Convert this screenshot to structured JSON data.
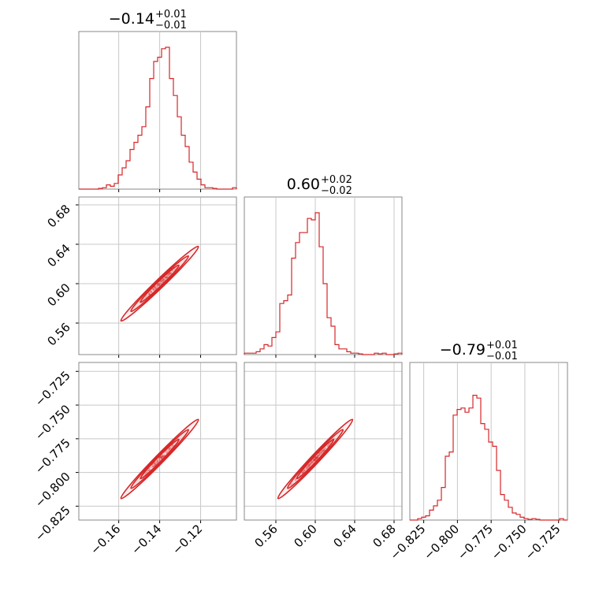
{
  "chart_data": {
    "type": "corner",
    "color": "#d62728",
    "grid": true,
    "parameters": [
      {
        "title": {
          "main": "−0.14",
          "plus": "+0.01",
          "minus": "−0.01"
        },
        "range": [
          -0.1795,
          -0.1025
        ],
        "ticks": [
          {
            "v": -0.16,
            "label": "−0.16"
          },
          {
            "v": -0.14,
            "label": "−0.14"
          },
          {
            "v": -0.12,
            "label": "−0.12"
          }
        ],
        "hist": [
          0,
          0,
          0,
          0,
          0,
          0.005,
          0.01,
          0.03,
          0.02,
          0.04,
          0.1,
          0.15,
          0.2,
          0.28,
          0.33,
          0.38,
          0.44,
          0.58,
          0.78,
          0.9,
          0.93,
          0.99,
          1.0,
          0.78,
          0.66,
          0.51,
          0.38,
          0.3,
          0.19,
          0.12,
          0.07,
          0.03,
          0.01,
          0.01,
          0.005,
          0,
          0,
          0,
          0,
          0.01
        ]
      },
      {
        "title": {
          "main": "0.60",
          "plus": "+0.02",
          "minus": "−0.02"
        },
        "range": [
          0.528,
          0.688
        ],
        "ticks": [
          {
            "v": 0.56,
            "label": "0.56"
          },
          {
            "v": 0.6,
            "label": "0.60"
          },
          {
            "v": 0.64,
            "label": "0.64"
          },
          {
            "v": 0.68,
            "label": "0.68"
          }
        ],
        "hist": [
          0.01,
          0.01,
          0.01,
          0.02,
          0.04,
          0.07,
          0.06,
          0.12,
          0.16,
          0.36,
          0.38,
          0.42,
          0.68,
          0.79,
          0.86,
          0.86,
          0.96,
          0.95,
          1.0,
          0.76,
          0.5,
          0.26,
          0.2,
          0.07,
          0.04,
          0.04,
          0.02,
          0.01,
          0.01,
          0.005,
          0,
          0,
          0,
          0.01,
          0.005,
          0.01,
          0,
          0,
          0.005,
          0.01
        ]
      },
      {
        "title": {
          "main": "−0.79",
          "plus": "+0.01",
          "minus": "−0.01"
        },
        "range": [
          -0.8353,
          -0.7184
        ],
        "ticks": [
          {
            "v": -0.825,
            "label": "−0.825"
          },
          {
            "v": -0.8,
            "label": "−0.800"
          },
          {
            "v": -0.775,
            "label": "−0.775"
          },
          {
            "v": -0.75,
            "label": "−0.750"
          },
          {
            "v": -0.725,
            "label": "−0.725"
          }
        ],
        "hist": [
          0,
          0,
          0.01,
          0.02,
          0.03,
          0.07,
          0.1,
          0.14,
          0.23,
          0.45,
          0.48,
          0.74,
          0.78,
          0.79,
          0.76,
          0.79,
          0.88,
          0.86,
          0.68,
          0.64,
          0.55,
          0.52,
          0.35,
          0.18,
          0.14,
          0.09,
          0.05,
          0.04,
          0.02,
          0.01,
          0.005,
          0.01,
          0.005,
          0,
          0,
          0,
          0,
          0,
          0.01,
          0
        ]
      }
    ],
    "pair_slopes": {
      "1_0": 2.0,
      "2_0": 1.55,
      "2_1": 0.775
    },
    "pair_intercepts": {
      "1_0": 0.88,
      "2_0": -0.573,
      "2_1": -1.255
    },
    "pair_widths": {
      "1_0": 0.004,
      "2_0": 0.0035,
      "2_1": 0.0018
    }
  }
}
